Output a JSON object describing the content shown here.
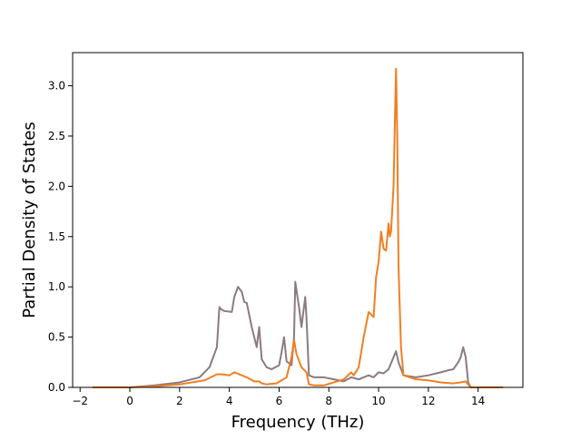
{
  "chart_data": {
    "type": "line",
    "title": "",
    "xlabel": "Frequency (THz)",
    "ylabel": "Partial Density of States",
    "xlim": [
      -2.3,
      15.8
    ],
    "ylim": [
      0.0,
      3.33
    ],
    "xticks": [
      -2,
      0,
      2,
      4,
      6,
      8,
      10,
      12,
      14
    ],
    "xtick_labels": [
      "−2",
      "0",
      "2",
      "4",
      "6",
      "8",
      "10",
      "12",
      "14"
    ],
    "yticks": [
      0.0,
      0.5,
      1.0,
      1.5,
      2.0,
      2.5,
      3.0
    ],
    "ytick_labels": [
      "0.0",
      "0.5",
      "1.0",
      "1.5",
      "2.0",
      "2.5",
      "3.0"
    ],
    "grid": false,
    "legend": "none",
    "series": [
      {
        "color": "#8c7a7f",
        "x": [
          -1.5,
          0.0,
          1.0,
          2.0,
          2.8,
          3.2,
          3.5,
          3.6,
          3.65,
          3.8,
          4.1,
          4.2,
          4.35,
          4.5,
          4.6,
          4.7,
          4.9,
          5.1,
          5.15,
          5.2,
          5.3,
          5.5,
          5.7,
          6.0,
          6.1,
          6.2,
          6.25,
          6.3,
          6.5,
          6.6,
          6.65,
          6.8,
          6.9,
          7.0,
          7.05,
          7.1,
          7.2,
          7.4,
          7.8,
          8.2,
          8.6,
          8.9,
          9.2,
          9.6,
          9.8,
          10.0,
          10.2,
          10.4,
          10.6,
          10.7,
          10.8,
          11.0,
          11.5,
          12.0,
          12.5,
          12.8,
          13.0,
          13.2,
          13.3,
          13.4,
          13.5,
          13.6,
          13.7,
          15.0
        ],
        "y": [
          0.0,
          0.0,
          0.02,
          0.05,
          0.1,
          0.2,
          0.4,
          0.8,
          0.78,
          0.76,
          0.75,
          0.9,
          1.0,
          0.95,
          0.85,
          0.84,
          0.6,
          0.4,
          0.5,
          0.6,
          0.28,
          0.2,
          0.18,
          0.22,
          0.35,
          0.5,
          0.38,
          0.26,
          0.22,
          0.5,
          1.05,
          0.8,
          0.6,
          0.8,
          0.9,
          0.7,
          0.12,
          0.1,
          0.1,
          0.08,
          0.06,
          0.1,
          0.08,
          0.12,
          0.1,
          0.15,
          0.14,
          0.18,
          0.3,
          0.36,
          0.25,
          0.12,
          0.1,
          0.12,
          0.15,
          0.17,
          0.18,
          0.25,
          0.3,
          0.4,
          0.3,
          0.05,
          0.0,
          0.0
        ]
      },
      {
        "color": "#f07f22",
        "x": [
          -1.5,
          0.0,
          1.0,
          2.0,
          3.0,
          3.5,
          3.7,
          4.0,
          4.2,
          4.4,
          4.7,
          5.0,
          5.2,
          5.3,
          5.5,
          5.9,
          6.1,
          6.3,
          6.5,
          6.6,
          6.7,
          6.9,
          7.1,
          7.2,
          7.4,
          7.8,
          8.2,
          8.6,
          8.9,
          9.0,
          9.2,
          9.4,
          9.6,
          9.8,
          9.9,
          10.0,
          10.1,
          10.2,
          10.3,
          10.4,
          10.45,
          10.5,
          10.6,
          10.7,
          10.75,
          10.8,
          10.9,
          11.0,
          11.5,
          12.0,
          12.5,
          13.0,
          13.3,
          13.5,
          13.6,
          13.7,
          15.0
        ],
        "y": [
          0.0,
          0.0,
          0.01,
          0.03,
          0.07,
          0.13,
          0.13,
          0.12,
          0.15,
          0.13,
          0.1,
          0.06,
          0.06,
          0.04,
          0.03,
          0.04,
          0.07,
          0.1,
          0.3,
          0.47,
          0.33,
          0.2,
          0.15,
          0.03,
          0.02,
          0.02,
          0.05,
          0.08,
          0.15,
          0.12,
          0.2,
          0.5,
          0.75,
          0.7,
          1.1,
          1.25,
          1.55,
          1.38,
          1.36,
          1.63,
          1.5,
          1.55,
          2.0,
          3.17,
          2.5,
          1.2,
          0.4,
          0.12,
          0.08,
          0.07,
          0.05,
          0.04,
          0.05,
          0.06,
          0.03,
          0.0,
          0.0
        ]
      }
    ]
  }
}
